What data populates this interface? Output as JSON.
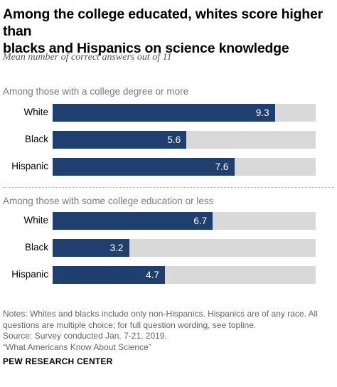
{
  "header": {
    "title_line1": "Among the college educated, whites score higher than",
    "title_line2": "blacks and Hispanics on science knowledge",
    "subtitle": "Mean number of correct answers out of 11"
  },
  "chart_data": {
    "type": "bar",
    "orientation": "horizontal",
    "xlim": [
      0,
      11
    ],
    "colors": {
      "bar": "#1f3f6e",
      "track": "#d9d9d9"
    },
    "groups": [
      {
        "label": "Among those with a college degree or more",
        "categories": [
          "White",
          "Black",
          "Hispanic"
        ],
        "values": [
          9.3,
          5.6,
          7.6
        ],
        "value_labels": [
          "9.3",
          "5.6",
          "7.6"
        ]
      },
      {
        "label": "Among those with some college education or less",
        "categories": [
          "White",
          "Black",
          "Hispanic"
        ],
        "values": [
          6.7,
          3.2,
          4.7
        ],
        "value_labels": [
          "6.7",
          "3.2",
          "4.7"
        ]
      }
    ]
  },
  "footer": {
    "notes": [
      "Notes: Whites and blacks include only non-Hispanics. Hispanics are of any race. All",
      "questions are multiple choice; for full question wording, see topline.",
      "Source: Survey conducted Jan. 7-21, 2019.",
      "“What Americans Know About Science”"
    ],
    "brand": "PEW RESEARCH CENTER"
  }
}
